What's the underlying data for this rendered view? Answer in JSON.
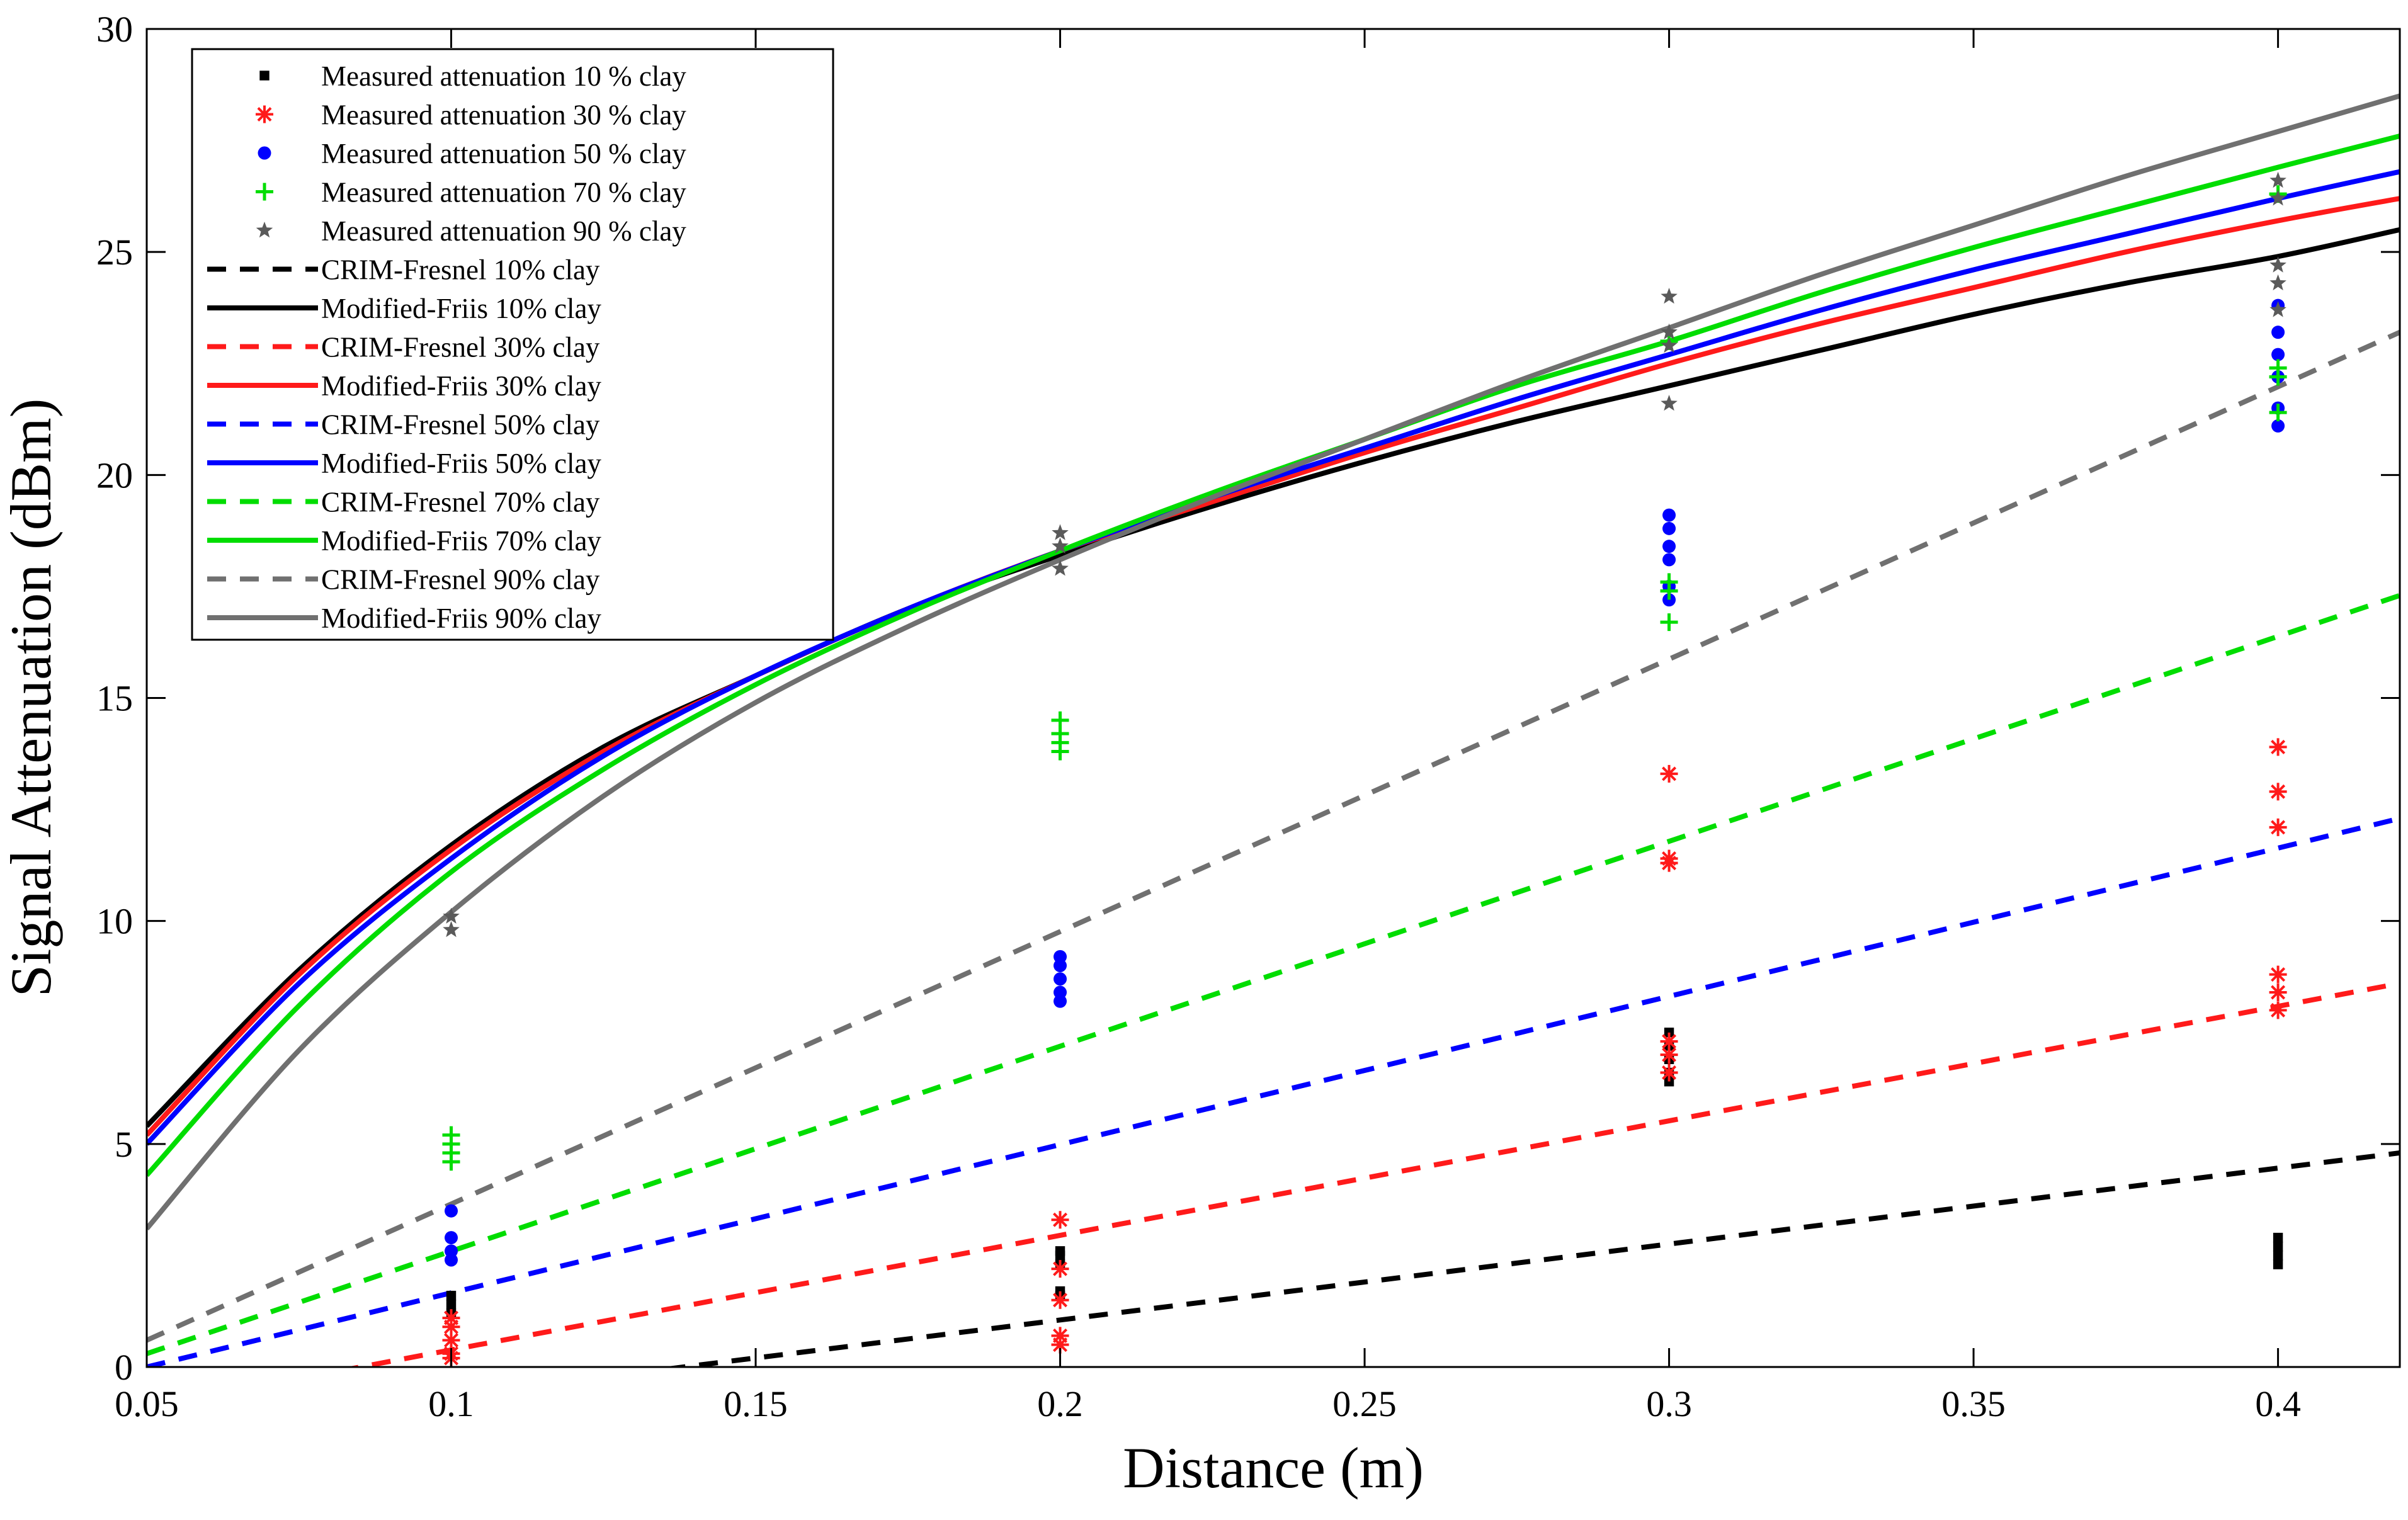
{
  "chart_data": {
    "type": "line",
    "title": "",
    "xlabel": "Distance (m)",
    "ylabel": "Signal Attenuation (dBm)",
    "xlim": [
      0.05,
      0.42
    ],
    "ylim": [
      0,
      30
    ],
    "xticks": [
      0.05,
      0.1,
      0.15,
      0.2,
      0.25,
      0.3,
      0.35,
      0.4
    ],
    "xtick_labels": [
      "0.05",
      "0.1",
      "0.15",
      "0.2",
      "0.25",
      "0.3",
      "0.35",
      "0.4"
    ],
    "yticks": [
      0,
      5,
      10,
      15,
      20,
      25,
      30
    ],
    "ytick_labels": [
      "0",
      "5",
      "10",
      "15",
      "20",
      "25",
      "30"
    ],
    "grid": false,
    "legend_position": "top-left",
    "colors": {
      "clay10": "#000000",
      "clay30": "#ff1a1a",
      "clay50": "#0000ff",
      "clay70": "#00dd00",
      "clay90": "#5a5a5a",
      "clay90_curve": "#707070"
    },
    "scatter_series": [
      {
        "name": "Measured attenuation 10 % clay",
        "marker": "square",
        "color_key": "clay10",
        "points": [
          [
            0.1,
            1.2
          ],
          [
            0.1,
            1.4
          ],
          [
            0.1,
            1.6
          ],
          [
            0.2,
            1.6
          ],
          [
            0.2,
            1.7
          ],
          [
            0.2,
            2.3
          ],
          [
            0.2,
            2.5
          ],
          [
            0.2,
            2.6
          ],
          [
            0.3,
            6.4
          ],
          [
            0.3,
            6.6
          ],
          [
            0.3,
            6.9
          ],
          [
            0.3,
            7.2
          ],
          [
            0.3,
            7.5
          ],
          [
            0.4,
            2.3
          ],
          [
            0.4,
            2.5
          ],
          [
            0.4,
            2.7
          ],
          [
            0.4,
            2.9
          ]
        ]
      },
      {
        "name": "Measured attenuation 30 % clay",
        "marker": "asterisk",
        "color_key": "clay30",
        "points": [
          [
            0.1,
            0.2
          ],
          [
            0.1,
            0.3
          ],
          [
            0.1,
            0.6
          ],
          [
            0.1,
            0.9
          ],
          [
            0.1,
            1.1
          ],
          [
            0.2,
            0.5
          ],
          [
            0.2,
            0.7
          ],
          [
            0.2,
            1.5
          ],
          [
            0.2,
            2.2
          ],
          [
            0.2,
            3.3
          ],
          [
            0.3,
            6.6
          ],
          [
            0.3,
            7.0
          ],
          [
            0.3,
            7.3
          ],
          [
            0.3,
            11.3
          ],
          [
            0.3,
            11.4
          ],
          [
            0.3,
            13.3
          ],
          [
            0.4,
            8.0
          ],
          [
            0.4,
            8.4
          ],
          [
            0.4,
            8.8
          ],
          [
            0.4,
            12.1
          ],
          [
            0.4,
            12.9
          ],
          [
            0.4,
            13.9
          ]
        ]
      },
      {
        "name": "Measured attenuation 50 % clay",
        "marker": "circle",
        "color_key": "clay50",
        "points": [
          [
            0.1,
            2.4
          ],
          [
            0.1,
            2.6
          ],
          [
            0.1,
            2.9
          ],
          [
            0.1,
            3.5
          ],
          [
            0.2,
            8.2
          ],
          [
            0.2,
            8.4
          ],
          [
            0.2,
            8.7
          ],
          [
            0.2,
            9.0
          ],
          [
            0.2,
            9.2
          ],
          [
            0.3,
            17.2
          ],
          [
            0.3,
            17.5
          ],
          [
            0.3,
            18.1
          ],
          [
            0.3,
            18.4
          ],
          [
            0.3,
            18.8
          ],
          [
            0.3,
            19.1
          ],
          [
            0.4,
            21.1
          ],
          [
            0.4,
            21.5
          ],
          [
            0.4,
            22.2
          ],
          [
            0.4,
            22.7
          ],
          [
            0.4,
            23.2
          ],
          [
            0.4,
            23.8
          ]
        ]
      },
      {
        "name": "Measured attenuation 70 % clay",
        "marker": "plus",
        "color_key": "clay70",
        "points": [
          [
            0.1,
            4.6
          ],
          [
            0.1,
            4.8
          ],
          [
            0.1,
            5.0
          ],
          [
            0.1,
            5.2
          ],
          [
            0.2,
            13.8
          ],
          [
            0.2,
            14.0
          ],
          [
            0.2,
            14.2
          ],
          [
            0.2,
            14.5
          ],
          [
            0.3,
            16.7
          ],
          [
            0.3,
            17.4
          ],
          [
            0.3,
            17.6
          ],
          [
            0.3,
            23.0
          ],
          [
            0.4,
            21.4
          ],
          [
            0.4,
            22.2
          ],
          [
            0.4,
            22.4
          ],
          [
            0.4,
            26.3
          ]
        ]
      },
      {
        "name": "Measured attenuation 90 % clay",
        "marker": "star",
        "color_key": "clay90",
        "points": [
          [
            0.1,
            9.8
          ],
          [
            0.1,
            10.1
          ],
          [
            0.2,
            17.9
          ],
          [
            0.2,
            18.4
          ],
          [
            0.2,
            18.7
          ],
          [
            0.3,
            21.6
          ],
          [
            0.3,
            22.9
          ],
          [
            0.3,
            23.2
          ],
          [
            0.3,
            24.0
          ],
          [
            0.4,
            23.7
          ],
          [
            0.4,
            24.3
          ],
          [
            0.4,
            24.7
          ],
          [
            0.4,
            26.2
          ],
          [
            0.4,
            26.6
          ]
        ]
      }
    ],
    "line_series": [
      {
        "name": "CRIM-Fresnel 10% clay",
        "style": "dashed",
        "color_key": "clay10",
        "x": [
          0.05,
          0.42
        ],
        "y": [
          -1.5,
          4.8
        ]
      },
      {
        "name": "Modified-Friis 10% clay",
        "style": "solid",
        "color_key": "clay10",
        "x": [
          0.05,
          0.075,
          0.1,
          0.125,
          0.15,
          0.175,
          0.2,
          0.225,
          0.25,
          0.275,
          0.3,
          0.325,
          0.35,
          0.375,
          0.4,
          0.42
        ],
        "y": [
          5.4,
          8.9,
          11.7,
          13.9,
          15.5,
          17.0,
          18.2,
          19.3,
          20.3,
          21.2,
          22.0,
          22.8,
          23.6,
          24.3,
          24.9,
          25.5
        ]
      },
      {
        "name": "CRIM-Fresnel 30% clay",
        "style": "dashed",
        "color_key": "clay30",
        "x": [
          0.05,
          0.42
        ],
        "y": [
          -0.9,
          8.6
        ]
      },
      {
        "name": "Modified-Friis 30% clay",
        "style": "solid",
        "color_key": "clay30",
        "x": [
          0.05,
          0.075,
          0.1,
          0.125,
          0.15,
          0.175,
          0.2,
          0.225,
          0.25,
          0.275,
          0.3,
          0.325,
          0.35,
          0.375,
          0.4,
          0.42
        ],
        "y": [
          5.2,
          8.8,
          11.6,
          13.8,
          15.5,
          17.0,
          18.3,
          19.4,
          20.5,
          21.5,
          22.5,
          23.4,
          24.2,
          25.0,
          25.7,
          26.2
        ]
      },
      {
        "name": "CRIM-Fresnel 50% clay",
        "style": "dashed",
        "color_key": "clay50",
        "x": [
          0.05,
          0.42
        ],
        "y": [
          0.0,
          12.3
        ]
      },
      {
        "name": "Modified-Friis 50% clay",
        "style": "solid",
        "color_key": "clay50",
        "x": [
          0.05,
          0.075,
          0.1,
          0.125,
          0.15,
          0.175,
          0.2,
          0.225,
          0.25,
          0.275,
          0.3,
          0.325,
          0.35,
          0.375,
          0.4,
          0.42
        ],
        "y": [
          5.0,
          8.6,
          11.4,
          13.7,
          15.5,
          17.0,
          18.3,
          19.5,
          20.6,
          21.7,
          22.7,
          23.7,
          24.6,
          25.4,
          26.2,
          26.8
        ]
      },
      {
        "name": "CRIM-Fresnel 70% clay",
        "style": "dashed",
        "color_key": "clay70",
        "x": [
          0.05,
          0.42
        ],
        "y": [
          0.3,
          17.3
        ]
      },
      {
        "name": "Modified-Friis 70% clay",
        "style": "solid",
        "color_key": "clay70",
        "x": [
          0.05,
          0.075,
          0.1,
          0.125,
          0.15,
          0.175,
          0.2,
          0.225,
          0.25,
          0.275,
          0.3,
          0.325,
          0.35,
          0.375,
          0.4,
          0.42
        ],
        "y": [
          4.3,
          8.1,
          11.1,
          13.4,
          15.3,
          16.9,
          18.3,
          19.6,
          20.8,
          22.0,
          23.0,
          24.1,
          25.1,
          26.0,
          26.9,
          27.6
        ]
      },
      {
        "name": "CRIM-Fresnel 90% clay",
        "style": "dashed",
        "color_key": "clay90_curve",
        "x": [
          0.05,
          0.42
        ],
        "y": [
          0.6,
          23.2
        ]
      },
      {
        "name": "Modified-Friis 90% clay",
        "style": "solid",
        "color_key": "clay90_curve",
        "x": [
          0.05,
          0.075,
          0.1,
          0.125,
          0.15,
          0.175,
          0.2,
          0.225,
          0.25,
          0.275,
          0.3,
          0.325,
          0.35,
          0.375,
          0.4,
          0.42
        ],
        "y": [
          3.1,
          7.1,
          10.2,
          12.8,
          14.9,
          16.6,
          18.1,
          19.5,
          20.8,
          22.1,
          23.3,
          24.5,
          25.6,
          26.7,
          27.7,
          28.5
        ]
      }
    ]
  }
}
